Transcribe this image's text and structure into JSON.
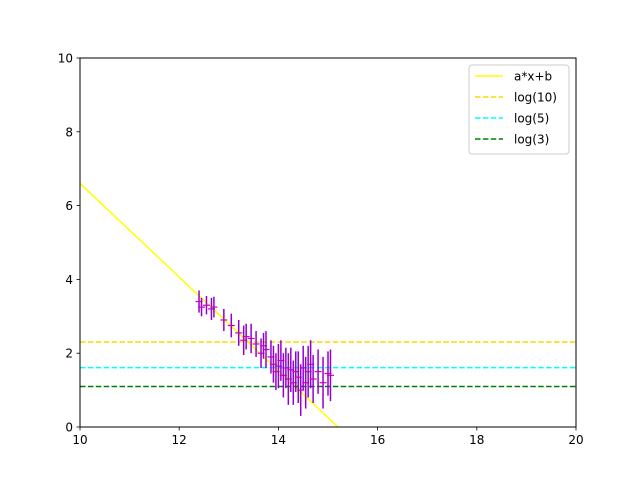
{
  "chart_data": {
    "type": "scatter",
    "title": "",
    "xlabel": "",
    "ylabel": "",
    "xlim": [
      10,
      20
    ],
    "ylim": [
      0,
      10
    ],
    "xticks": [
      "10",
      "12",
      "14",
      "16",
      "18",
      "20"
    ],
    "yticks": [
      "0",
      "2",
      "4",
      "6",
      "8",
      "10"
    ],
    "grid": false,
    "legend_position": "top-right",
    "fit_line": {
      "name": "a*x+b",
      "color": "#ffff00",
      "x": [
        10,
        15.2
      ],
      "y": [
        6.6,
        0
      ]
    },
    "hlines": [
      {
        "name": "log(10)",
        "y": 2.302585,
        "color": "#ffd700",
        "style": "dashed"
      },
      {
        "name": "log(5)",
        "y": 1.609438,
        "color": "#00ffff",
        "style": "dashed"
      },
      {
        "name": "log(3)",
        "y": 1.098612,
        "color": "#008000",
        "style": "dashed"
      }
    ],
    "points": {
      "color": "#9400d3",
      "marker_color": "#c800c8",
      "data": [
        {
          "x": 12.4,
          "y": 3.4,
          "err": 0.3
        },
        {
          "x": 12.45,
          "y": 3.25,
          "err": 0.25
        },
        {
          "x": 12.55,
          "y": 3.3,
          "err": 0.25
        },
        {
          "x": 12.65,
          "y": 3.2,
          "err": 0.3
        },
        {
          "x": 12.7,
          "y": 3.25,
          "err": 0.28
        },
        {
          "x": 12.9,
          "y": 2.9,
          "err": 0.3
        },
        {
          "x": 13.05,
          "y": 2.75,
          "err": 0.32
        },
        {
          "x": 13.2,
          "y": 2.55,
          "err": 0.35
        },
        {
          "x": 13.3,
          "y": 2.35,
          "err": 0.4
        },
        {
          "x": 13.35,
          "y": 2.45,
          "err": 0.35
        },
        {
          "x": 13.45,
          "y": 2.4,
          "err": 0.4
        },
        {
          "x": 13.55,
          "y": 2.25,
          "err": 0.35
        },
        {
          "x": 13.65,
          "y": 2.0,
          "err": 0.4
        },
        {
          "x": 13.7,
          "y": 2.2,
          "err": 0.35
        },
        {
          "x": 13.75,
          "y": 2.1,
          "err": 0.5
        },
        {
          "x": 13.85,
          "y": 1.9,
          "err": 0.45
        },
        {
          "x": 13.9,
          "y": 1.7,
          "err": 0.5
        },
        {
          "x": 13.95,
          "y": 1.5,
          "err": 0.5
        },
        {
          "x": 14.0,
          "y": 1.65,
          "err": 0.6
        },
        {
          "x": 14.05,
          "y": 1.8,
          "err": 0.55
        },
        {
          "x": 14.1,
          "y": 1.4,
          "err": 0.6
        },
        {
          "x": 14.15,
          "y": 1.6,
          "err": 0.55
        },
        {
          "x": 14.2,
          "y": 1.3,
          "err": 0.7
        },
        {
          "x": 14.25,
          "y": 1.55,
          "err": 0.6
        },
        {
          "x": 14.3,
          "y": 1.2,
          "err": 0.6
        },
        {
          "x": 14.35,
          "y": 1.5,
          "err": 0.55
        },
        {
          "x": 14.4,
          "y": 1.35,
          "err": 0.7
        },
        {
          "x": 14.45,
          "y": 1.0,
          "err": 0.7
        },
        {
          "x": 14.5,
          "y": 1.6,
          "err": 0.6
        },
        {
          "x": 14.55,
          "y": 1.2,
          "err": 0.7
        },
        {
          "x": 14.6,
          "y": 1.5,
          "err": 0.7
        },
        {
          "x": 14.65,
          "y": 1.7,
          "err": 0.65
        },
        {
          "x": 14.7,
          "y": 1.3,
          "err": 0.65
        },
        {
          "x": 14.8,
          "y": 1.5,
          "err": 0.6
        },
        {
          "x": 14.9,
          "y": 1.2,
          "err": 0.7
        },
        {
          "x": 15.0,
          "y": 1.45,
          "err": 0.6
        },
        {
          "x": 15.05,
          "y": 1.4,
          "err": 0.7
        }
      ]
    }
  }
}
